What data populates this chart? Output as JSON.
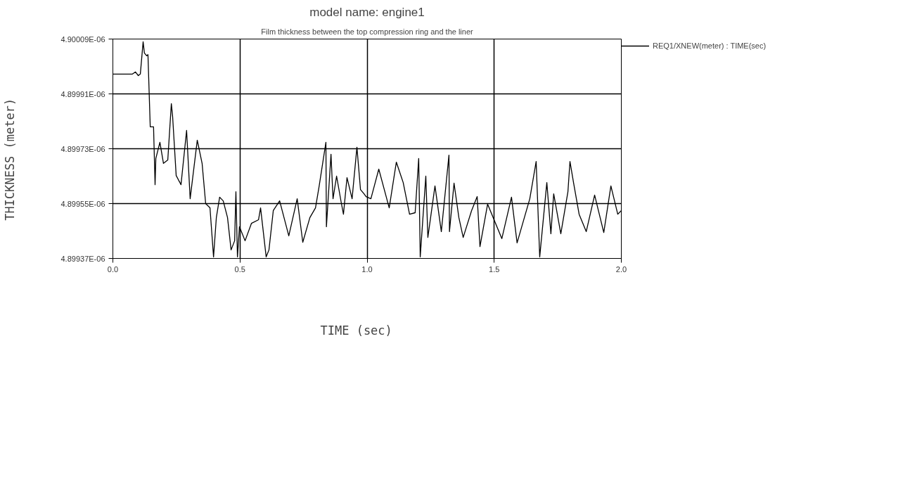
{
  "chart_data": {
    "type": "line",
    "title": "model name: engine1",
    "subtitle": "Film thickness between the top compression ring and the liner",
    "xlabel": "TIME    (sec)",
    "ylabel": "THICKNESS    (meter)",
    "xlim": [
      0,
      2.0
    ],
    "xticks": [
      {
        "value": 0,
        "label": "0.0"
      },
      {
        "value": 0.5,
        "label": "0.5"
      },
      {
        "value": 1.0,
        "label": "1.0"
      },
      {
        "value": 1.5,
        "label": "1.5"
      },
      {
        "value": 2.0,
        "label": "2.0"
      }
    ],
    "ylim": [
      4.89937e-06,
      4.90009e-06
    ],
    "yticks": [
      {
        "value": 4.89937e-06,
        "label": "4.89937E-06"
      },
      {
        "value": 4.89955e-06,
        "label": "4.89955E-06"
      },
      {
        "value": 4.89973e-06,
        "label": "4.89973E-06"
      },
      {
        "value": 4.89991e-06,
        "label": "4.89991E-06"
      },
      {
        "value": 4.90009e-06,
        "label": "4.90009E-06"
      }
    ],
    "grid": true,
    "legend": "top right",
    "marker": "none",
    "line_style": "solid",
    "series": [
      {
        "name": "REQ1/XNEW(meter) : TIME(sec)",
        "color": "#000000",
        "x": [
          0,
          0.077,
          0.089,
          0.1,
          0.108,
          0.119,
          0.124,
          0.133,
          0.138,
          0.147,
          0.16,
          0.166,
          0.169,
          0.185,
          0.199,
          0.216,
          0.23,
          0.235,
          0.249,
          0.268,
          0.29,
          0.304,
          0.332,
          0.351,
          0.365,
          0.382,
          0.396,
          0.407,
          0.42,
          0.434,
          0.451,
          0.465,
          0.479,
          0.484,
          0.49,
          0.498,
          0.52,
          0.545,
          0.573,
          0.581,
          0.603,
          0.614,
          0.631,
          0.656,
          0.692,
          0.725,
          0.747,
          0.775,
          0.797,
          0.811,
          0.838,
          0.84,
          0.858,
          0.866,
          0.88,
          0.899,
          0.907,
          0.921,
          0.941,
          0.96,
          0.974,
          0.988,
          0.996,
          1.015,
          1.046,
          1.087,
          1.115,
          1.142,
          1.167,
          1.189,
          1.203,
          1.209,
          1.231,
          1.239,
          1.267,
          1.292,
          1.322,
          1.324,
          1.342,
          1.361,
          1.378,
          1.411,
          1.433,
          1.444,
          1.474,
          1.53,
          1.568,
          1.59,
          1.64,
          1.665,
          1.679,
          1.707,
          1.723,
          1.734,
          1.762,
          1.79,
          1.798,
          1.812,
          1.834,
          1.862,
          1.895,
          1.931,
          1.959,
          1.986,
          2.0
        ],
        "values": [
          4.899975e-06,
          4.899975e-06,
          4.899982e-06,
          4.89997e-06,
          4.899975e-06,
          4.900081e-06,
          4.900044e-06,
          4.900035e-06,
          4.900039e-06,
          4.899802e-06,
          4.899802e-06,
          4.899612e-06,
          4.899698e-06,
          4.899751e-06,
          4.899682e-06,
          4.899693e-06,
          4.899878e-06,
          4.899836e-06,
          4.899642e-06,
          4.899612e-06,
          4.89979e-06,
          4.899566e-06,
          4.899758e-06,
          4.899682e-06,
          4.89955e-06,
          4.899536e-06,
          4.899375e-06,
          4.899504e-06,
          4.899571e-06,
          4.899559e-06,
          4.899504e-06,
          4.899398e-06,
          4.899428e-06,
          4.899589e-06,
          4.899375e-06,
          4.899474e-06,
          4.899428e-06,
          4.899485e-06,
          4.899497e-06,
          4.899536e-06,
          4.899375e-06,
          4.899398e-06,
          4.899527e-06,
          4.899559e-06,
          4.899444e-06,
          4.899566e-06,
          4.899423e-06,
          4.899504e-06,
          4.899536e-06,
          4.899605e-06,
          4.899751e-06,
          4.899474e-06,
          4.899712e-06,
          4.899566e-06,
          4.89964e-06,
          4.89955e-06,
          4.899515e-06,
          4.899635e-06,
          4.899566e-06,
          4.899735e-06,
          4.899596e-06,
          4.899582e-06,
          4.899573e-06,
          4.899566e-06,
          4.899663e-06,
          4.899536e-06,
          4.899686e-06,
          4.899619e-06,
          4.899515e-06,
          4.89952e-06,
          4.899698e-06,
          4.899375e-06,
          4.89964e-06,
          4.899439e-06,
          4.899608e-06,
          4.899458e-06,
          4.899709e-06,
          4.899458e-06,
          4.899617e-06,
          4.899504e-06,
          4.899439e-06,
          4.899527e-06,
          4.899573e-06,
          4.899409e-06,
          4.899548e-06,
          4.899435e-06,
          4.899571e-06,
          4.899421e-06,
          4.899566e-06,
          4.899688e-06,
          4.899375e-06,
          4.899619e-06,
          4.899451e-06,
          4.899582e-06,
          4.899451e-06,
          4.899589e-06,
          4.899688e-06,
          4.899619e-06,
          4.899515e-06,
          4.899458e-06,
          4.899578e-06,
          4.899455e-06,
          4.899608e-06,
          4.899515e-06,
          4.899527e-06
        ]
      }
    ]
  }
}
